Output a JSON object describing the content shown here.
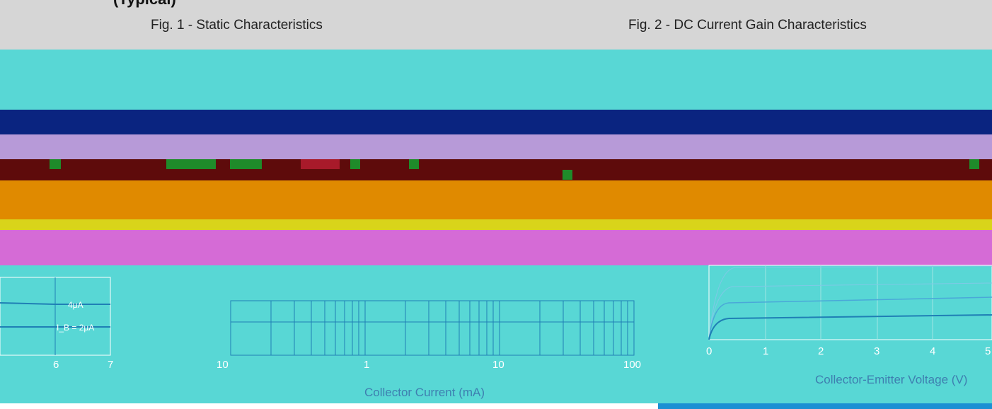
{
  "header": {
    "top_partial": "(Typical)",
    "fig1_title": "Fig. 1 - Static Characteristics",
    "fig2_title": "Fig. 2 - DC Current Gain Characteristics"
  },
  "fig1": {
    "x_ticks": [
      "6",
      "7"
    ],
    "curve_labels": [
      "4μA",
      "I_B = 2μA"
    ]
  },
  "middle": {
    "x_ticks": [
      "10",
      "1",
      "10",
      "100"
    ],
    "xlabel": "Collector Current (mA)"
  },
  "fig2": {
    "x_ticks": [
      "0",
      "1",
      "2",
      "3",
      "4",
      "5"
    ],
    "xlabel": "Collector-Emitter Voltage (V)"
  },
  "colors": {
    "cyan": "#58d7d5",
    "gray": "#d6d6d6",
    "navy": "#0a2480",
    "lavender": "#b79ad8",
    "maroon": "#5e0b0b",
    "orange": "#e08a00",
    "yellow": "#d9d41a",
    "magenta": "#d56bd6",
    "green": "#1f8b2a",
    "blue_line": "#1f7fb5",
    "bottom_bar": "#1b90d3"
  }
}
